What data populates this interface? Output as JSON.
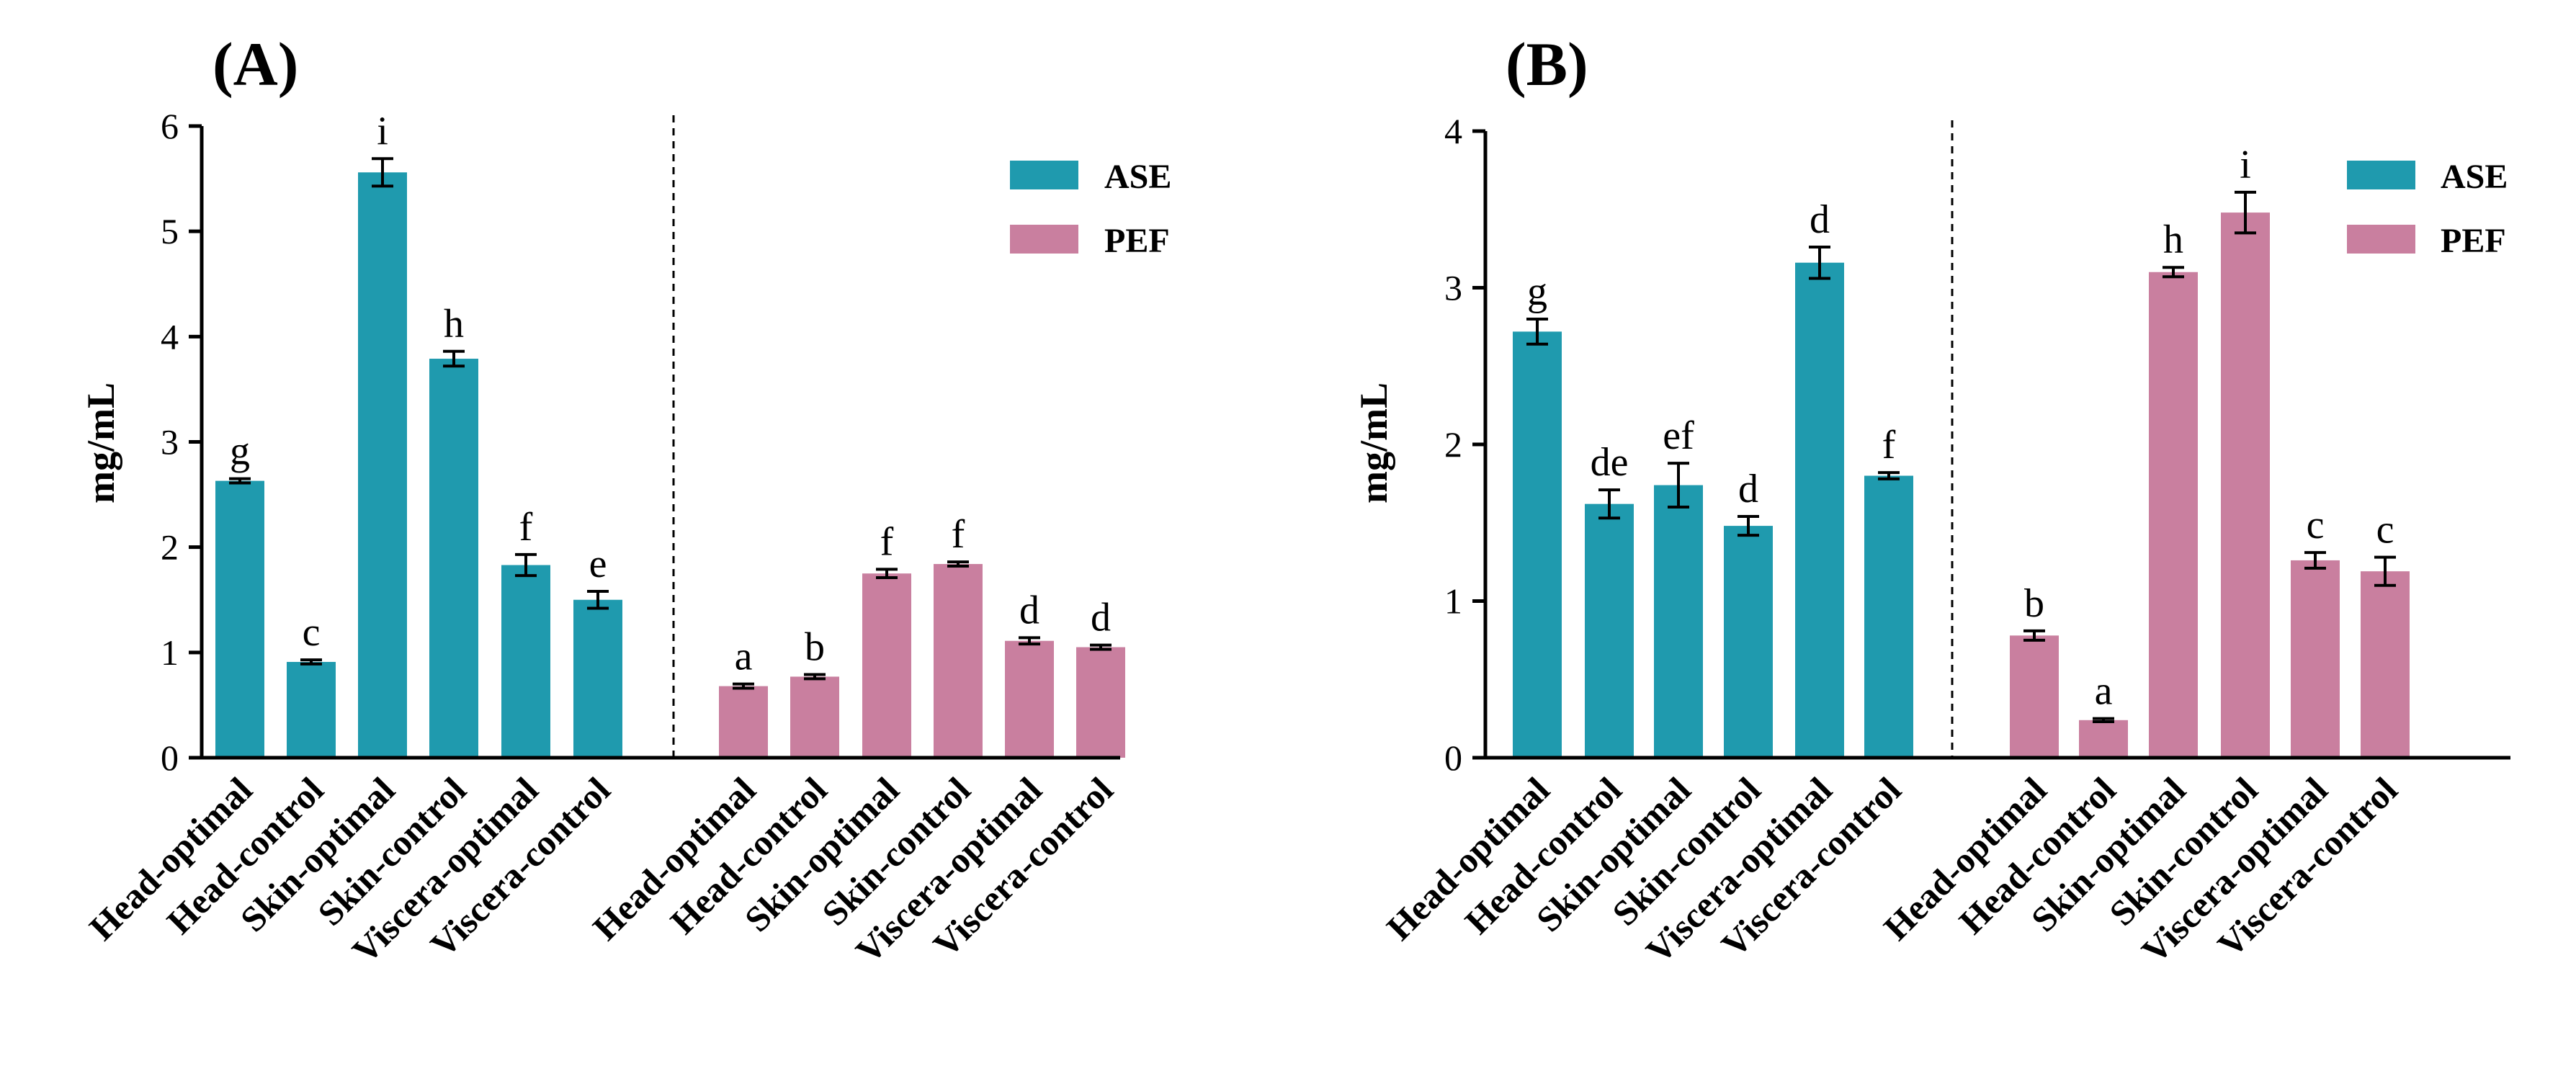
{
  "colors": {
    "ASE": "#1f9aae",
    "PEF": "#c97f9f",
    "axis": "#000000"
  },
  "chart_data": [
    {
      "type": "bar",
      "panel_label": "(A)",
      "ylabel": "mg/mL",
      "ylim": [
        0,
        6
      ],
      "yticks": [
        "0",
        "1",
        "2",
        "3",
        "4",
        "5",
        "6"
      ],
      "legend": [
        "ASE",
        "PEF"
      ],
      "categories": [
        "Head-optimal",
        "Head-control",
        "Skin-optimal",
        "Skin-control",
        "Viscera-optimal",
        "Viscera-control"
      ],
      "series": [
        {
          "name": "ASE",
          "values": [
            2.63,
            0.91,
            5.56,
            3.79,
            1.83,
            1.5
          ],
          "errors": [
            0.02,
            0.02,
            0.13,
            0.07,
            0.1,
            0.08
          ],
          "letters": [
            "g",
            "c",
            "i",
            "h",
            "f",
            "e"
          ]
        },
        {
          "name": "PEF",
          "values": [
            0.68,
            0.77,
            1.75,
            1.84,
            1.11,
            1.05
          ],
          "errors": [
            0.02,
            0.02,
            0.04,
            0.02,
            0.03,
            0.02
          ],
          "letters": [
            "a",
            "b",
            "f",
            "f",
            "d",
            "d"
          ]
        }
      ]
    },
    {
      "type": "bar",
      "panel_label": "(B)",
      "ylabel": "mg/mL",
      "ylim": [
        0,
        4
      ],
      "yticks": [
        "0",
        "1",
        "2",
        "3",
        "4"
      ],
      "legend": [
        "ASE",
        "PEF"
      ],
      "categories": [
        "Head-optimal",
        "Head-control",
        "Skin-optimal",
        "Skin-control",
        "Viscera-optimal",
        "Viscera-control"
      ],
      "series": [
        {
          "name": "ASE",
          "values": [
            2.72,
            1.62,
            1.74,
            1.48,
            3.16,
            1.8
          ],
          "errors": [
            0.08,
            0.09,
            0.14,
            0.06,
            0.1,
            0.02
          ],
          "letters": [
            "g",
            "de",
            "ef",
            "d",
            "d",
            "f"
          ]
        },
        {
          "name": "PEF",
          "values": [
            0.78,
            0.24,
            3.1,
            3.48,
            1.26,
            1.19
          ],
          "errors": [
            0.03,
            0.01,
            0.03,
            0.13,
            0.05,
            0.09
          ],
          "letters": [
            "b",
            "a",
            "h",
            "i",
            "c",
            "c"
          ]
        }
      ]
    }
  ]
}
